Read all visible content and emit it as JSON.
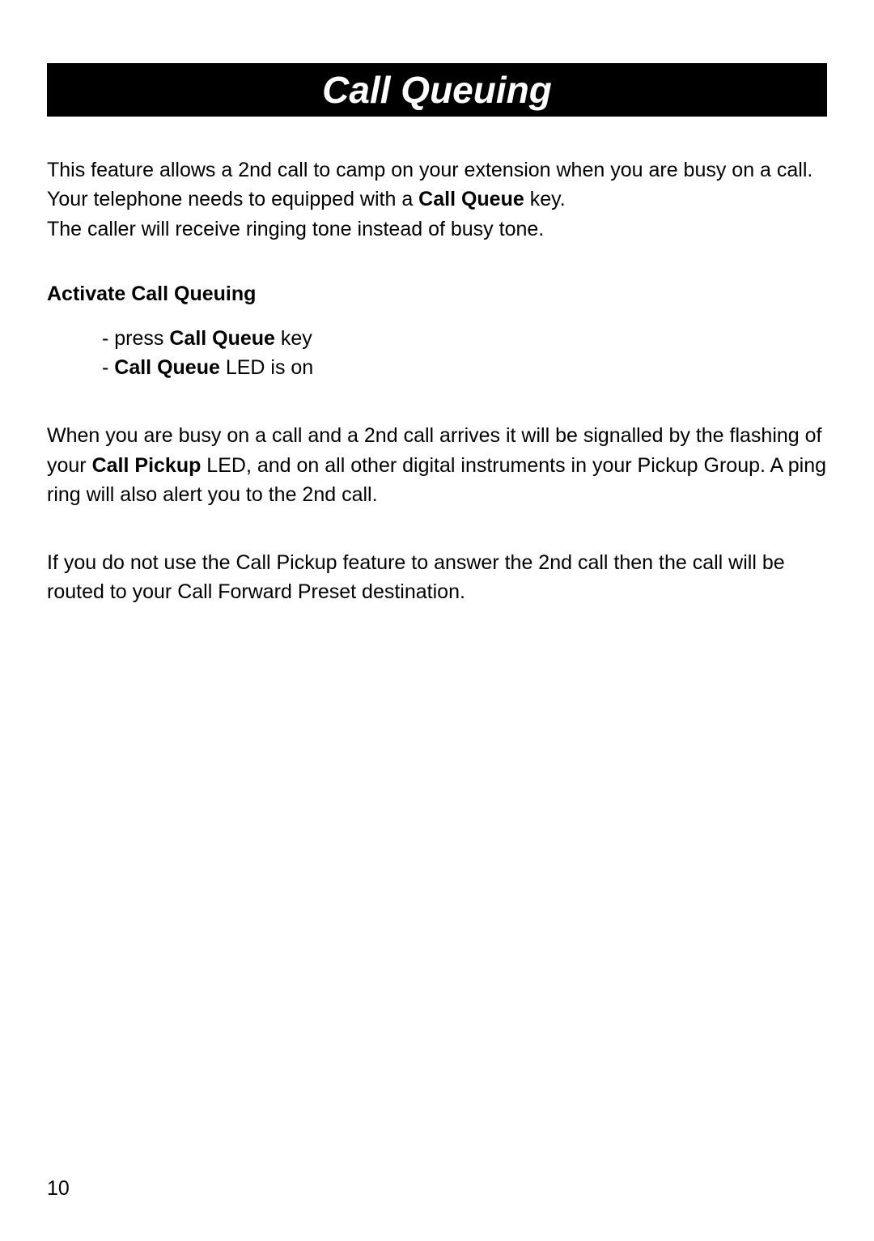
{
  "title": "Call Queuing",
  "intro": {
    "p1_a": "This feature allows a 2nd call to camp on your extension when you are busy on a call. Your telephone needs to equipped with a ",
    "p1_bold": "Call Queue",
    "p1_b": " key.",
    "p2": "The caller will receive ringing tone instead of busy tone."
  },
  "subheading": "Activate Call Queuing",
  "bullets": {
    "b1_a": "- press ",
    "b1_bold": "Call Queue",
    "b1_b": " key",
    "b2_a": "- ",
    "b2_bold": "Call Queue",
    "b2_b": " LED is on"
  },
  "para2": {
    "a": "When you are busy on a call and a 2nd call arrives it will be signalled by the flashing of your ",
    "bold": "Call Pickup",
    "b": " LED, and on all other digital instruments in your Pickup Group. A ping ring will also alert you to the 2nd call."
  },
  "para3": "If you do not use the Call Pickup feature to answer the 2nd call then the call will be routed to your Call Forward Preset destination.",
  "pageNumber": "10",
  "colors": {
    "titleBarBg": "#000000",
    "titleText": "#ffffff",
    "bodyText": "#000000",
    "pageBg": "#ffffff"
  },
  "typography": {
    "titleFontSize": 46,
    "bodyFontSize": 25,
    "titleFontStyle": "italic",
    "titleFontWeight": "bold"
  }
}
